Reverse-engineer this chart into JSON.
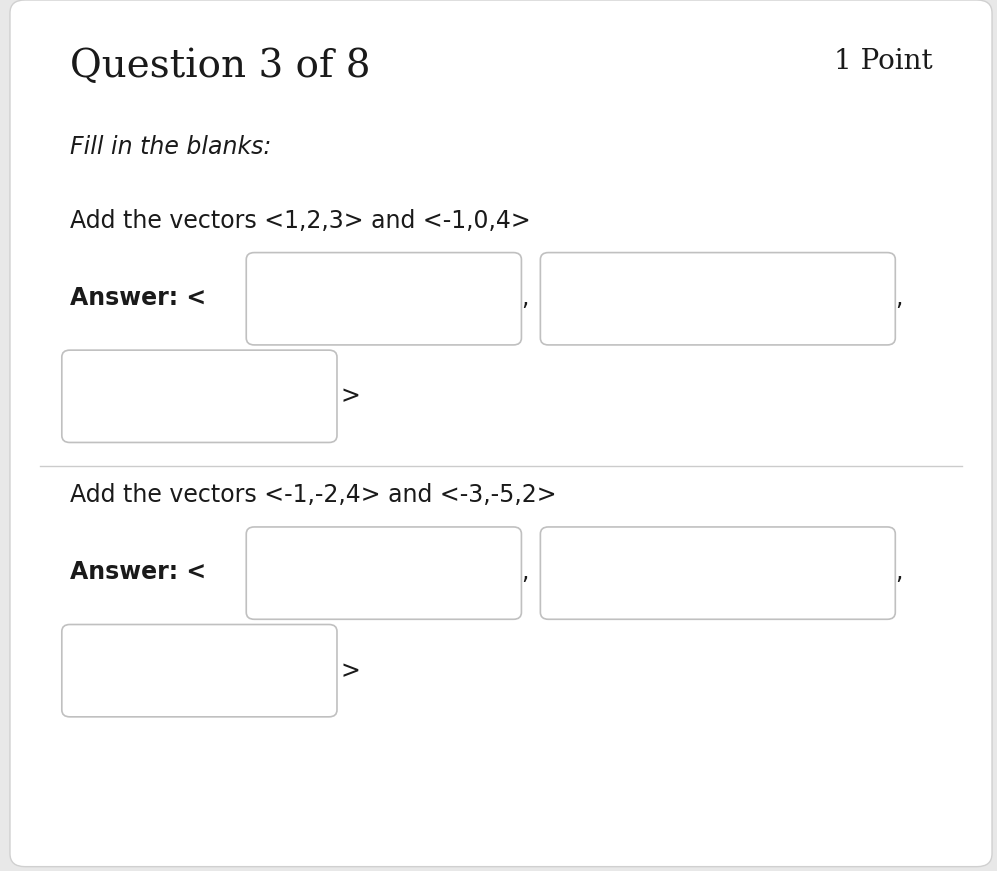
{
  "bg_color": "#e8e8e8",
  "card_color": "#ffffff",
  "title": "Question 3 of 8",
  "points": "1 Point",
  "instruction": "Fill in the blanks:",
  "q1_text": "Add the vectors <1,2,3> and <-1,0,4>",
  "q1_answer_label": "Answer: <",
  "q2_text": "Add the vectors <-1,-2,4> and <-3,-5,2>",
  "q2_answer_label": "Answer: <",
  "chevron": ">",
  "comma": ",",
  "title_fontsize": 28,
  "points_fontsize": 20,
  "instruction_fontsize": 17,
  "question_fontsize": 17,
  "answer_fontsize": 17,
  "box_edge_color": "#c0c0c0",
  "box_fill_color": "#ffffff",
  "separator_color": "#cccccc",
  "text_color": "#1a1a1a"
}
